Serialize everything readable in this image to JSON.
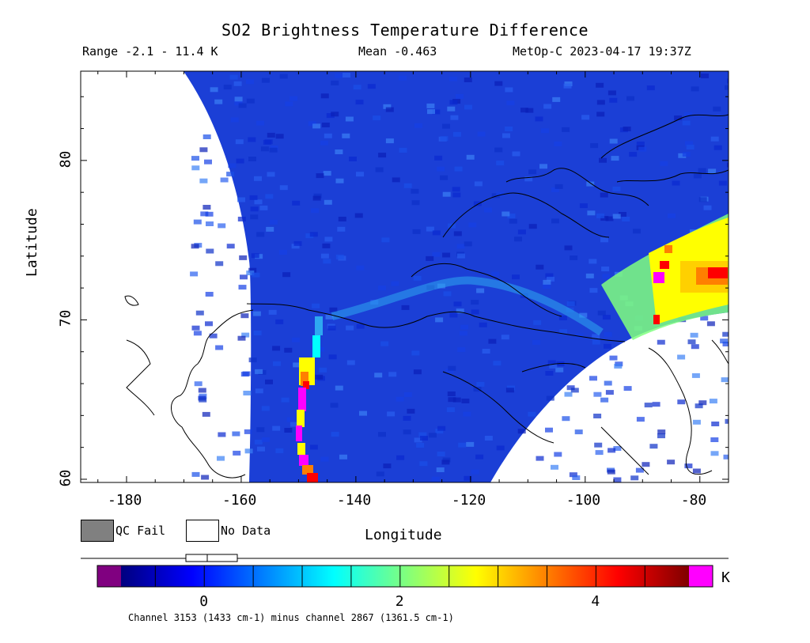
{
  "header": {
    "title": "SO2 Brightness Temperature Difference",
    "range": "Range -2.1 - 11.4 K",
    "mean": "Mean -0.463",
    "satellite_time": "MetOp-C 2023-04-17 19:37Z"
  },
  "axes": {
    "xlabel": "Longitude",
    "ylabel": "Latitude",
    "x_ticks": [
      "-180",
      "-160",
      "-140",
      "-120",
      "-100",
      "-80"
    ],
    "y_ticks": [
      "60",
      "70",
      "80"
    ],
    "lon_range": [
      -188,
      -75
    ],
    "lat_range": [
      59.8,
      85.6
    ]
  },
  "legend": {
    "qc_fail": "QC Fail",
    "no_data": "No Data",
    "qc_fail_color": "#808080",
    "no_data_color": "#ffffff"
  },
  "colorbar": {
    "unit": "K",
    "ticks": [
      "0",
      "2",
      "4"
    ],
    "tick_values": [
      0,
      2,
      4
    ],
    "min": -0.85,
    "max": 4.95,
    "under_color": "#800080",
    "over_color": "#ff00ff",
    "colors": [
      "#00007f",
      "#0000ff",
      "#007fff",
      "#00ffff",
      "#7fff7f",
      "#ffff00",
      "#ff7f00",
      "#ff0000",
      "#7f0000"
    ]
  },
  "caption": "Channel 3153 (1433 cm-1) minus channel 2867 (1361.5 cm-1)"
}
